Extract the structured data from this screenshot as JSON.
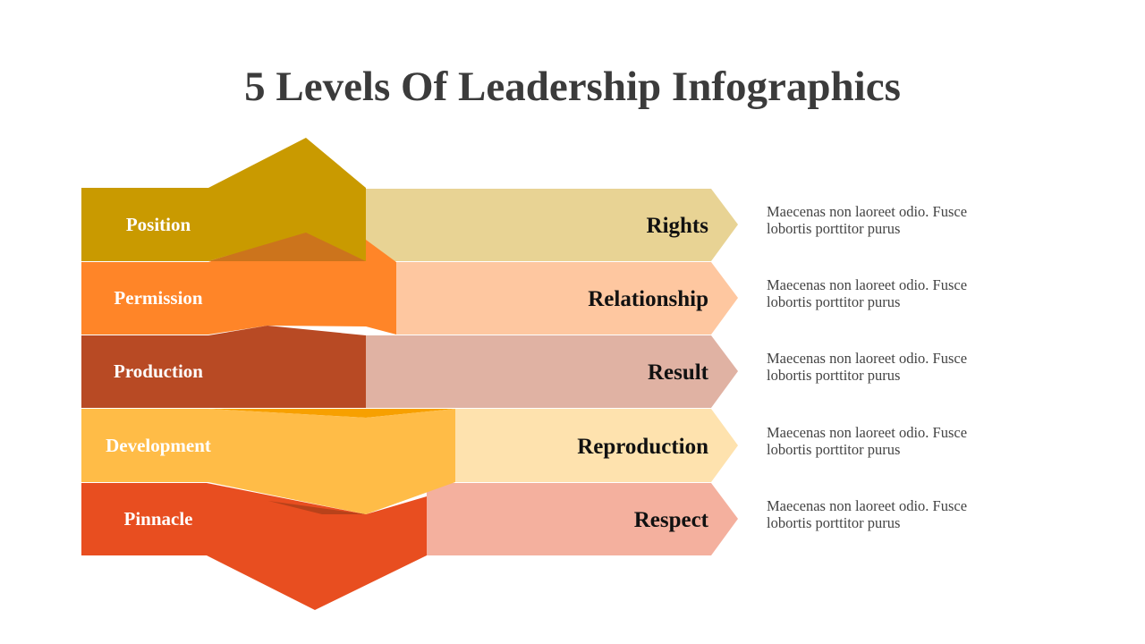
{
  "title": "5 Levels Of Leadership Infographics",
  "levels": [
    {
      "label": "Position",
      "key": "Rights",
      "description": "Maecenas non laoreet odio. Fusce lobortis porttitor purus"
    },
    {
      "label": "Permission",
      "key": "Relationship",
      "description": "Maecenas non laoreet odio. Fusce lobortis porttitor purus"
    },
    {
      "label": "Production",
      "key": "Result",
      "description": "Maecenas non laoreet odio. Fusce lobortis porttitor purus"
    },
    {
      "label": "Development",
      "key": "Reproduction",
      "description": "Maecenas non laoreet odio. Fusce lobortis porttitor purus"
    },
    {
      "label": "Pinnacle",
      "key": "Respect",
      "description": "Maecenas non laoreet odio. Fusce lobortis porttitor purus"
    }
  ]
}
